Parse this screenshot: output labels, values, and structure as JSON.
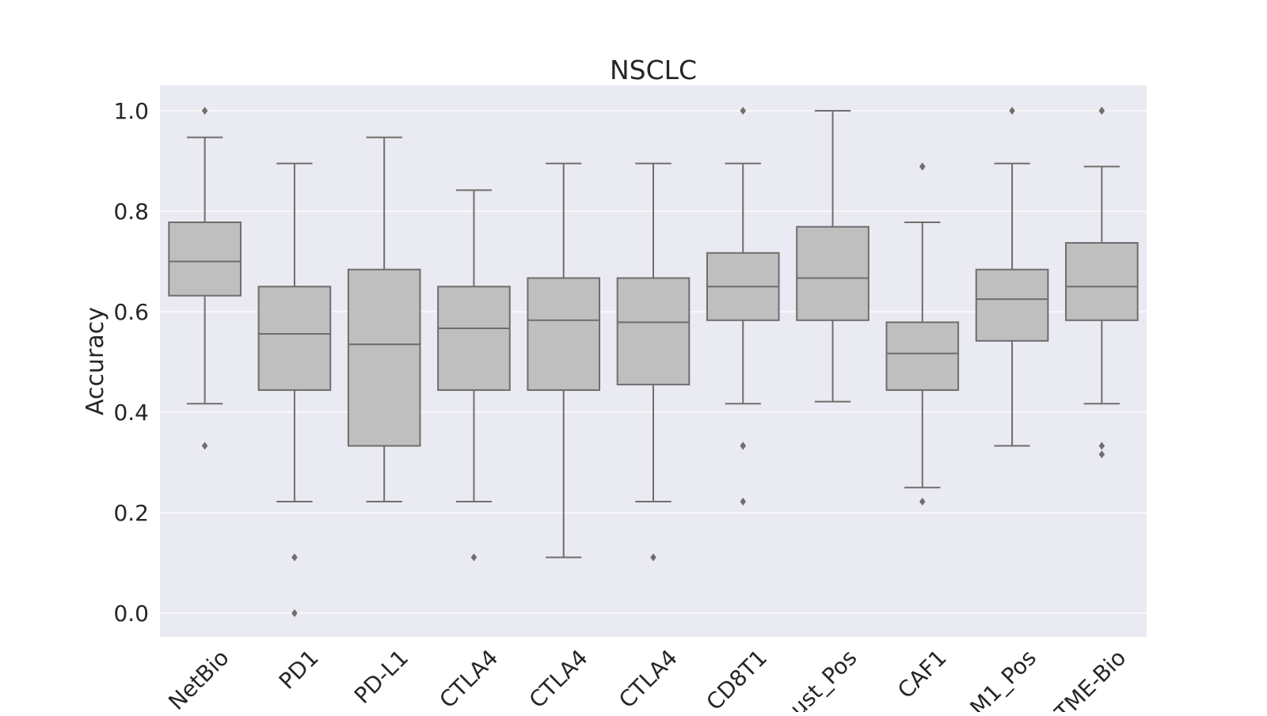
{
  "chart_data": {
    "type": "box",
    "title": "NSCLC",
    "xlabel": "",
    "ylabel": "Accuracy",
    "ylim": [
      -0.05,
      1.05
    ],
    "yticks": [
      "0.0",
      "0.2",
      "0.4",
      "0.6",
      "0.8",
      "1.0"
    ],
    "grid": true,
    "categories": [
      "NetBio",
      "PD1",
      "PD-L1",
      "CTLA4",
      "CTLA4",
      "CTLA4",
      "CD8T1",
      "ust_Pos",
      "CAF1",
      "M1_Pos",
      "TME-Bio"
    ],
    "boxes": [
      {
        "q1": 0.632,
        "median": 0.7,
        "q3": 0.778,
        "whisker_low": 0.417,
        "whisker_high": 0.947,
        "outliers": [
          1.0,
          0.333
        ]
      },
      {
        "q1": 0.444,
        "median": 0.556,
        "q3": 0.65,
        "whisker_low": 0.222,
        "whisker_high": 0.895,
        "outliers": [
          0.111,
          0.0
        ]
      },
      {
        "q1": 0.333,
        "median": 0.535,
        "q3": 0.684,
        "whisker_low": 0.222,
        "whisker_high": 0.947,
        "outliers": []
      },
      {
        "q1": 0.444,
        "median": 0.567,
        "q3": 0.65,
        "whisker_low": 0.222,
        "whisker_high": 0.842,
        "outliers": [
          0.111
        ]
      },
      {
        "q1": 0.444,
        "median": 0.583,
        "q3": 0.667,
        "whisker_low": 0.111,
        "whisker_high": 0.895,
        "outliers": []
      },
      {
        "q1": 0.455,
        "median": 0.579,
        "q3": 0.667,
        "whisker_low": 0.222,
        "whisker_high": 0.895,
        "outliers": [
          0.111
        ]
      },
      {
        "q1": 0.583,
        "median": 0.65,
        "q3": 0.717,
        "whisker_low": 0.417,
        "whisker_high": 0.895,
        "outliers": [
          1.0,
          0.333,
          0.333,
          0.222
        ]
      },
      {
        "q1": 0.583,
        "median": 0.667,
        "q3": 0.769,
        "whisker_low": 0.421,
        "whisker_high": 1.0,
        "outliers": []
      },
      {
        "q1": 0.444,
        "median": 0.517,
        "q3": 0.579,
        "whisker_low": 0.25,
        "whisker_high": 0.778,
        "outliers": [
          0.889,
          0.889,
          0.222
        ]
      },
      {
        "q1": 0.542,
        "median": 0.625,
        "q3": 0.684,
        "whisker_low": 0.333,
        "whisker_high": 0.895,
        "outliers": [
          1.0
        ]
      },
      {
        "q1": 0.583,
        "median": 0.65,
        "q3": 0.737,
        "whisker_low": 0.417,
        "whisker_high": 0.889,
        "outliers": [
          1.0,
          1.0,
          0.333,
          0.316
        ]
      }
    ],
    "colors": {
      "plot_background": "#eaeaf2",
      "grid": "#ffffff",
      "box_fill": "#bfbfbf",
      "box_line": "#6e6e6e"
    }
  }
}
